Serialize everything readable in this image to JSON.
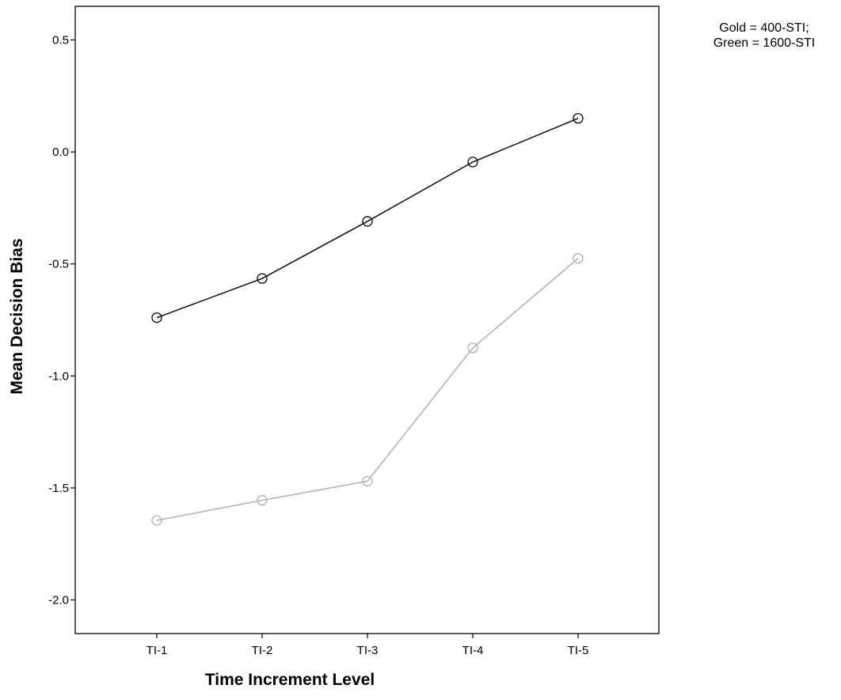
{
  "chart_data": {
    "type": "line",
    "title": "",
    "xlabel": "Time Increment Level",
    "ylabel": "Mean Decision Bias",
    "categories": [
      "TI-1",
      "TI-2",
      "TI-3",
      "TI-4",
      "TI-5"
    ],
    "ylim": [
      -2.15,
      0.65
    ],
    "yticks": [
      "0.5",
      "0.0",
      "-0.5",
      "-1.0",
      "-1.5",
      "-2.0"
    ],
    "grid": false,
    "legend_note": {
      "line1": "Gold = 400-STI;",
      "line2": "Green = 1600-STI"
    },
    "series": [
      {
        "values": [
          -0.74,
          -0.565,
          -0.31,
          -0.045,
          0.15
        ],
        "color": "#1a1a1a",
        "marker": "circle-open"
      },
      {
        "values": [
          -1.645,
          -1.555,
          -1.47,
          -0.875,
          -0.475
        ],
        "color": "#b4b4b4",
        "marker": "circle-open"
      }
    ]
  }
}
